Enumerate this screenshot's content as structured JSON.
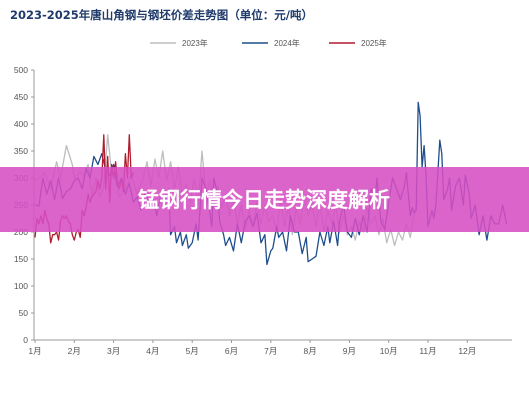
{
  "chart_data": {
    "type": "line",
    "title": "2023-2025年唐山角钢与钢坯价差走势图（单位：元/吨）",
    "banner": "锰钢行情今日走势深度解析",
    "ylim": [
      0,
      500
    ],
    "yticks": [
      0,
      50,
      100,
      150,
      200,
      250,
      300,
      350,
      400,
      450,
      500
    ],
    "categories": [
      "1月",
      "2月",
      "3月",
      "4月",
      "5月",
      "6月",
      "7月",
      "8月",
      "9月",
      "10月",
      "11月",
      "12月"
    ],
    "grid": false,
    "legend_position": "top",
    "series": [
      {
        "name": "2023年",
        "color": "#bdbdbd",
        "values": [
          [
            0.0,
            295
          ],
          [
            0.1,
            300
          ],
          [
            0.25,
            310
          ],
          [
            0.4,
            280
          ],
          [
            0.55,
            330
          ],
          [
            0.65,
            300
          ],
          [
            0.8,
            360
          ],
          [
            0.95,
            325
          ],
          [
            1.0,
            300
          ],
          [
            1.15,
            310
          ],
          [
            1.25,
            305
          ],
          [
            1.35,
            325
          ],
          [
            1.45,
            265
          ],
          [
            1.55,
            300
          ],
          [
            1.65,
            265
          ],
          [
            1.75,
            285
          ],
          [
            1.85,
            380
          ],
          [
            1.95,
            310
          ],
          [
            2.05,
            295
          ],
          [
            2.15,
            265
          ],
          [
            2.3,
            280
          ],
          [
            2.45,
            305
          ],
          [
            2.6,
            270
          ],
          [
            2.75,
            300
          ],
          [
            2.85,
            330
          ],
          [
            2.95,
            285
          ],
          [
            3.05,
            335
          ],
          [
            3.15,
            300
          ],
          [
            3.25,
            350
          ],
          [
            3.35,
            295
          ],
          [
            3.45,
            330
          ],
          [
            3.55,
            280
          ],
          [
            3.65,
            320
          ],
          [
            3.75,
            265
          ],
          [
            3.85,
            290
          ],
          [
            3.95,
            255
          ],
          [
            4.05,
            300
          ],
          [
            4.15,
            250
          ],
          [
            4.25,
            350
          ],
          [
            4.35,
            265
          ],
          [
            4.45,
            295
          ],
          [
            4.55,
            250
          ],
          [
            4.65,
            285
          ],
          [
            4.75,
            245
          ],
          [
            4.85,
            270
          ],
          [
            4.95,
            230
          ],
          [
            5.05,
            260
          ],
          [
            5.15,
            215
          ],
          [
            5.25,
            250
          ],
          [
            5.35,
            205
          ],
          [
            5.45,
            240
          ],
          [
            5.55,
            210
          ],
          [
            5.65,
            255
          ],
          [
            5.75,
            215
          ],
          [
            5.85,
            250
          ],
          [
            5.95,
            220
          ],
          [
            6.05,
            230
          ],
          [
            6.15,
            200
          ],
          [
            6.25,
            260
          ],
          [
            6.35,
            210
          ],
          [
            6.45,
            250
          ],
          [
            6.55,
            195
          ],
          [
            6.65,
            245
          ],
          [
            6.75,
            215
          ],
          [
            6.85,
            265
          ],
          [
            6.95,
            230
          ],
          [
            7.05,
            250
          ],
          [
            7.15,
            210
          ],
          [
            7.25,
            255
          ],
          [
            7.35,
            200
          ],
          [
            7.45,
            240
          ],
          [
            7.55,
            215
          ],
          [
            7.65,
            250
          ],
          [
            7.75,
            200
          ],
          [
            7.85,
            230
          ],
          [
            7.95,
            195
          ],
          [
            8.05,
            210
          ],
          [
            8.15,
            185
          ],
          [
            8.25,
            220
          ],
          [
            8.35,
            200
          ],
          [
            8.45,
            245
          ],
          [
            8.55,
            215
          ],
          [
            8.65,
            230
          ],
          [
            8.75,
            195
          ],
          [
            8.85,
            225
          ],
          [
            8.95,
            180
          ],
          [
            9.05,
            205
          ],
          [
            9.15,
            175
          ],
          [
            9.25,
            200
          ],
          [
            9.35,
            185
          ],
          [
            9.45,
            215
          ],
          [
            9.55,
            190
          ],
          [
            9.65,
            235
          ],
          [
            9.75,
            260
          ]
        ]
      },
      {
        "name": "2024年",
        "color": "#1f4e8c",
        "values": [
          [
            0.0,
            250
          ],
          [
            0.1,
            248
          ],
          [
            0.2,
            300
          ],
          [
            0.3,
            270
          ],
          [
            0.4,
            295
          ],
          [
            0.5,
            260
          ],
          [
            0.6,
            300
          ],
          [
            0.7,
            262
          ],
          [
            0.8,
            275
          ],
          [
            0.9,
            280
          ],
          [
            1.0,
            295
          ],
          [
            1.1,
            300
          ],
          [
            1.2,
            280
          ],
          [
            1.3,
            318
          ],
          [
            1.4,
            300
          ],
          [
            1.5,
            340
          ],
          [
            1.6,
            325
          ],
          [
            1.7,
            345
          ],
          [
            1.8,
            315
          ],
          [
            1.9,
            305
          ],
          [
            2.0,
            325
          ],
          [
            2.1,
            285
          ],
          [
            2.2,
            300
          ],
          [
            2.3,
            270
          ],
          [
            2.4,
            290
          ],
          [
            2.5,
            255
          ],
          [
            2.6,
            265
          ],
          [
            2.7,
            240
          ],
          [
            2.8,
            275
          ],
          [
            2.9,
            255
          ],
          [
            3.0,
            265
          ],
          [
            3.1,
            230
          ],
          [
            3.2,
            270
          ],
          [
            3.3,
            255
          ],
          [
            3.4,
            280
          ],
          [
            3.45,
            195
          ],
          [
            3.55,
            210
          ],
          [
            3.6,
            180
          ],
          [
            3.7,
            200
          ],
          [
            3.75,
            175
          ],
          [
            3.85,
            195
          ],
          [
            3.9,
            170
          ],
          [
            4.0,
            180
          ],
          [
            4.1,
            215
          ],
          [
            4.15,
            185
          ],
          [
            4.25,
            300
          ],
          [
            4.35,
            280
          ],
          [
            4.45,
            235
          ],
          [
            4.5,
            210
          ],
          [
            4.55,
            300
          ],
          [
            4.65,
            270
          ],
          [
            4.7,
            220
          ],
          [
            4.8,
            195
          ],
          [
            4.85,
            175
          ],
          [
            4.95,
            190
          ],
          [
            5.05,
            165
          ],
          [
            5.15,
            215
          ],
          [
            5.25,
            180
          ],
          [
            5.35,
            220
          ],
          [
            5.45,
            230
          ],
          [
            5.55,
            210
          ],
          [
            5.65,
            235
          ],
          [
            5.75,
            180
          ],
          [
            5.85,
            195
          ],
          [
            5.9,
            140
          ],
          [
            6.0,
            165
          ],
          [
            6.05,
            170
          ],
          [
            6.15,
            210
          ],
          [
            6.2,
            190
          ],
          [
            6.3,
            200
          ],
          [
            6.4,
            165
          ],
          [
            6.5,
            230
          ],
          [
            6.6,
            200
          ],
          [
            6.7,
            200
          ],
          [
            6.8,
            160
          ],
          [
            6.9,
            190
          ],
          [
            6.95,
            145
          ],
          [
            7.05,
            150
          ],
          [
            7.15,
            155
          ],
          [
            7.25,
            200
          ],
          [
            7.35,
            175
          ],
          [
            7.45,
            210
          ],
          [
            7.5,
            180
          ],
          [
            7.6,
            220
          ],
          [
            7.7,
            175
          ],
          [
            7.75,
            220
          ],
          [
            7.85,
            250
          ],
          [
            7.95,
            200
          ],
          [
            8.05,
            190
          ],
          [
            8.15,
            225
          ],
          [
            8.25,
            195
          ],
          [
            8.35,
            230
          ],
          [
            8.45,
            200
          ],
          [
            8.55,
            280
          ],
          [
            8.65,
            250
          ],
          [
            8.7,
            300
          ],
          [
            8.8,
            220
          ],
          [
            8.9,
            205
          ],
          [
            9.0,
            255
          ],
          [
            9.1,
            300
          ],
          [
            9.2,
            280
          ],
          [
            9.3,
            260
          ],
          [
            9.4,
            285
          ],
          [
            9.45,
            310
          ],
          [
            9.55,
            230
          ],
          [
            9.6,
            245
          ],
          [
            9.65,
            235
          ],
          [
            9.7,
            240
          ],
          [
            9.75,
            440
          ],
          [
            9.8,
            415
          ],
          [
            9.85,
            320
          ],
          [
            9.9,
            360
          ],
          [
            9.95,
            305
          ],
          [
            10.0,
            210
          ],
          [
            10.1,
            240
          ],
          [
            10.15,
            225
          ],
          [
            10.2,
            250
          ],
          [
            10.3,
            370
          ],
          [
            10.35,
            345
          ],
          [
            10.4,
            260
          ],
          [
            10.5,
            280
          ],
          [
            10.55,
            300
          ],
          [
            10.6,
            240
          ],
          [
            10.7,
            285
          ],
          [
            10.8,
            300
          ],
          [
            10.9,
            250
          ],
          [
            10.95,
            305
          ],
          [
            11.05,
            270
          ],
          [
            11.1,
            225
          ],
          [
            11.2,
            250
          ],
          [
            11.3,
            195
          ],
          [
            11.4,
            230
          ],
          [
            11.5,
            185
          ],
          [
            11.6,
            230
          ],
          [
            11.7,
            215
          ],
          [
            11.8,
            215
          ],
          [
            11.9,
            250
          ],
          [
            12.0,
            215
          ]
        ]
      },
      {
        "name": "2025年",
        "color": "#b01c2e",
        "values": [
          [
            0.0,
            190
          ],
          [
            0.05,
            225
          ],
          [
            0.1,
            215
          ],
          [
            0.15,
            230
          ],
          [
            0.2,
            215
          ],
          [
            0.25,
            240
          ],
          [
            0.3,
            225
          ],
          [
            0.35,
            215
          ],
          [
            0.4,
            180
          ],
          [
            0.45,
            195
          ],
          [
            0.5,
            195
          ],
          [
            0.55,
            200
          ],
          [
            0.6,
            185
          ],
          [
            0.65,
            220
          ],
          [
            0.7,
            230
          ],
          [
            0.75,
            225
          ],
          [
            0.8,
            230
          ],
          [
            0.85,
            220
          ],
          [
            0.9,
            215
          ],
          [
            0.95,
            195
          ],
          [
            1.0,
            185
          ],
          [
            1.05,
            200
          ],
          [
            1.1,
            205
          ],
          [
            1.15,
            190
          ],
          [
            1.2,
            240
          ],
          [
            1.25,
            230
          ],
          [
            1.3,
            245
          ],
          [
            1.35,
            270
          ],
          [
            1.4,
            255
          ],
          [
            1.45,
            265
          ],
          [
            1.55,
            275
          ],
          [
            1.6,
            295
          ],
          [
            1.65,
            280
          ],
          [
            1.7,
            300
          ],
          [
            1.75,
            380
          ],
          [
            1.8,
            280
          ],
          [
            1.85,
            340
          ],
          [
            1.9,
            255
          ],
          [
            1.95,
            325
          ],
          [
            2.0,
            300
          ],
          [
            2.05,
            330
          ],
          [
            2.1,
            290
          ],
          [
            2.15,
            280
          ],
          [
            2.2,
            300
          ],
          [
            2.25,
            275
          ],
          [
            2.3,
            345
          ],
          [
            2.35,
            300
          ],
          [
            2.4,
            380
          ],
          [
            2.45,
            300
          ],
          [
            2.5,
            310
          ]
        ]
      }
    ]
  }
}
